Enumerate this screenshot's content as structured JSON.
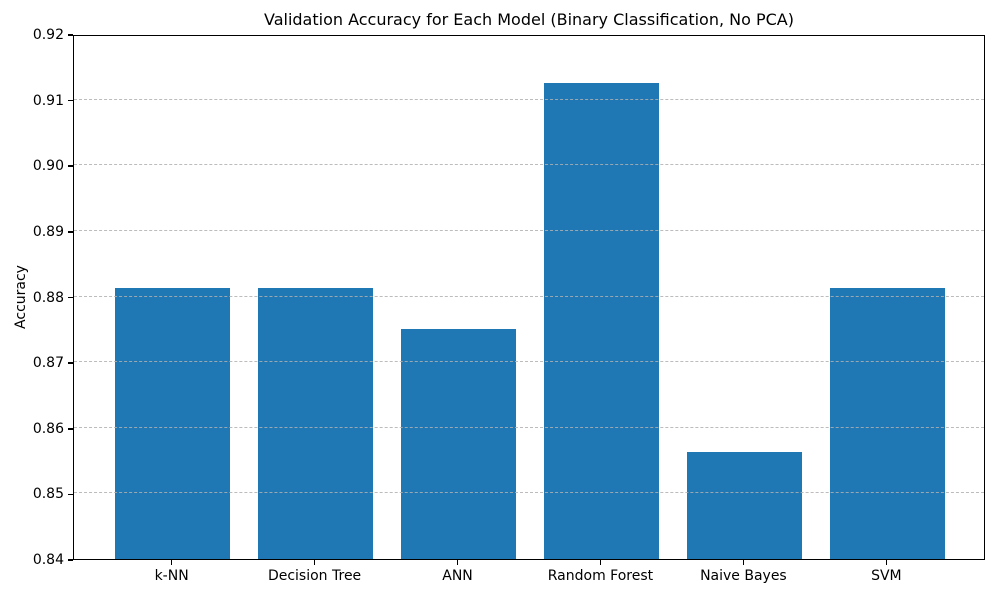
{
  "chart": {
    "title": "Validation Accuracy for Each Model (Binary Classification, No PCA)",
    "ylabel": "Accuracy"
  },
  "chart_data": {
    "type": "bar",
    "categories": [
      "k-NN",
      "Decision Tree",
      "ANN",
      "Random Forest",
      "Naive Bayes",
      "SVM"
    ],
    "values": [
      0.88125,
      0.88125,
      0.875,
      0.9125,
      0.85625,
      0.88125
    ],
    "title": "Validation Accuracy for Each Model (Binary Classification, No PCA)",
    "xlabel": "",
    "ylabel": "Accuracy",
    "ylim": [
      0.84,
      0.92
    ],
    "yticks": [
      0.84,
      0.85,
      0.86,
      0.87,
      0.88,
      0.89,
      0.9,
      0.91,
      0.92
    ],
    "ytick_labels": [
      "0.84",
      "0.85",
      "0.86",
      "0.87",
      "0.88",
      "0.89",
      "0.90",
      "0.91",
      "0.92"
    ],
    "grid": "horizontal-dashed-over-bars",
    "legend": null,
    "bar_color": "#1f77b4",
    "bar_relative_width": 0.8,
    "axis_color": "#000000",
    "grid_color": "#b0b0b0",
    "background_color": "#ffffff"
  }
}
